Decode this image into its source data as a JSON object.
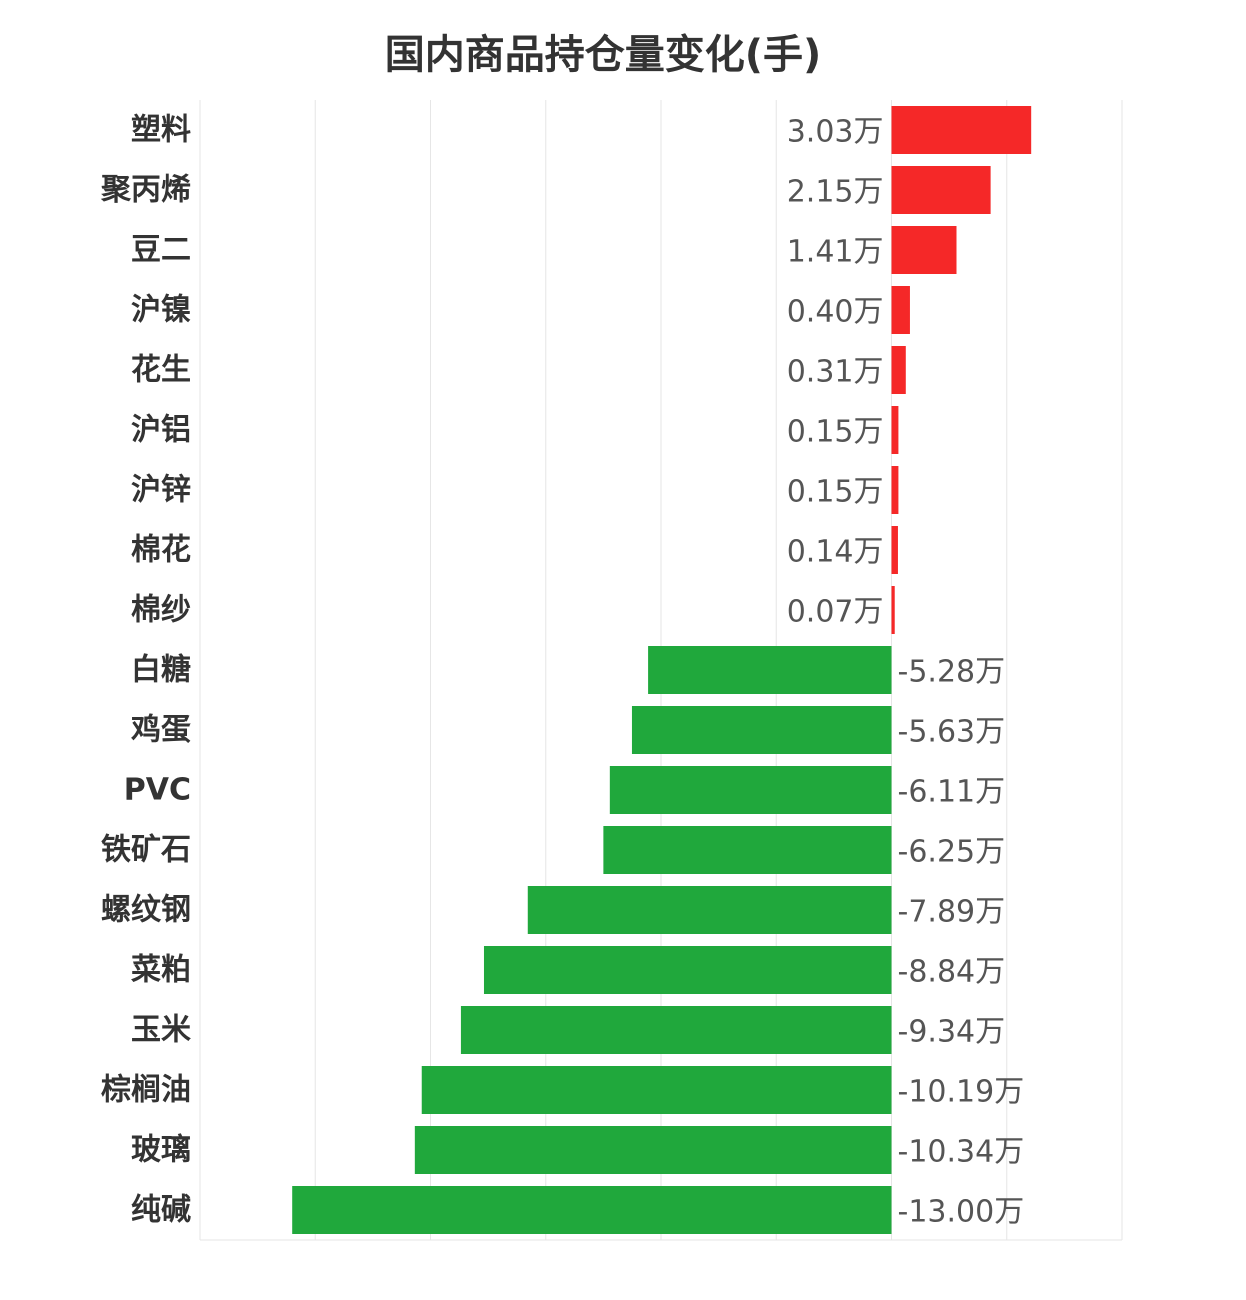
{
  "chart_data": {
    "type": "bar",
    "orientation": "horizontal",
    "title": "国内商品持仓量变化(手)",
    "xlabel": "",
    "ylabel": "",
    "unit_suffix": "万",
    "xlim": [
      -15,
      5
    ],
    "grid": true,
    "categories": [
      "塑料",
      "聚丙烯",
      "豆二",
      "沪镍",
      "花生",
      "沪铝",
      "沪锌",
      "棉花",
      "棉纱",
      "白糖",
      "鸡蛋",
      "PVC",
      "铁矿石",
      "螺纹钢",
      "菜粕",
      "玉米",
      "棕榈油",
      "玻璃",
      "纯碱"
    ],
    "values": [
      3.03,
      2.15,
      1.41,
      0.4,
      0.31,
      0.15,
      0.15,
      0.14,
      0.07,
      -5.28,
      -5.63,
      -6.11,
      -6.25,
      -7.89,
      -8.84,
      -9.34,
      -10.19,
      -10.34,
      -13.0
    ],
    "value_labels": [
      "3.03万",
      "2.15万",
      "1.41万",
      "0.40万",
      "0.31万",
      "0.15万",
      "0.15万",
      "0.14万",
      "0.07万",
      "-5.28万",
      "-5.63万",
      "-6.11万",
      "-6.25万",
      "-7.89万",
      "-8.84万",
      "-9.34万",
      "-10.19万",
      "-10.34万",
      "-13.00万"
    ],
    "colors": {
      "positive": "#f52828",
      "negative": "#20a83c",
      "grid": "#e6e6e6"
    }
  }
}
